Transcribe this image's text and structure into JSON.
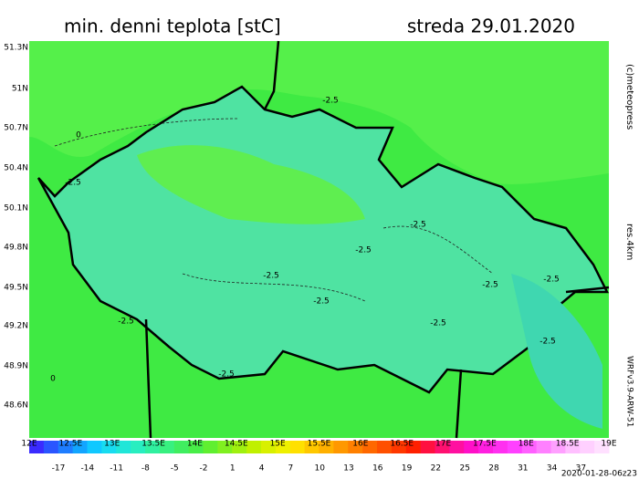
{
  "header": {
    "title": "min. denni teplota [stC]",
    "date": "streda 29.01.2020"
  },
  "side": {
    "copyright": "(c)meteopress",
    "resolution": "res.4km",
    "model": "WRFv3.9-ARW-51",
    "timestamp": "2020-01-28-06z23"
  },
  "lat_labels": [
    "51.3N",
    "51N",
    "50.7N",
    "50.4N",
    "50.1N",
    "49.8N",
    "49.5N",
    "49.2N",
    "48.9N",
    "48.6N"
  ],
  "lon_labels": [
    "12E",
    "12.5E",
    "13E",
    "13.5E",
    "14E",
    "14.5E",
    "15E",
    "15.5E",
    "16E",
    "16.5E",
    "17E",
    "17.5E",
    "18E",
    "18.5E",
    "19E"
  ],
  "colorbar_labels": [
    "-17",
    "-14",
    "-11",
    "-8",
    "-5",
    "-2",
    "1",
    "4",
    "7",
    "10",
    "13",
    "16",
    "19",
    "22",
    "25",
    "28",
    "31",
    "34",
    "37"
  ],
  "contour_labels": [
    "-2.5",
    "-2.5",
    "-2.5",
    "-2.5",
    "-2.5",
    "-2.5",
    "-2.5",
    "-2.5",
    "-2.5",
    "-2.5",
    "-2.5",
    "-2.5",
    "0",
    "0"
  ]
}
